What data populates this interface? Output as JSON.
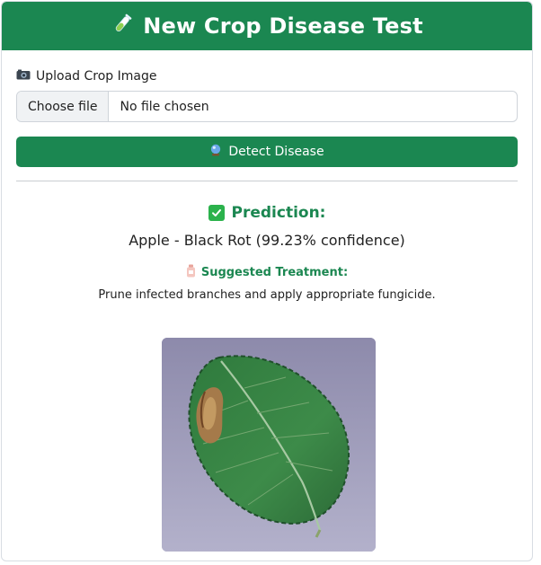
{
  "header": {
    "icon": "test-tube-icon",
    "title": "New Crop Disease Test"
  },
  "upload": {
    "icon": "camera-icon",
    "label": "Upload Crop Image",
    "choose_button": "Choose file",
    "file_status": "No file chosen"
  },
  "detect": {
    "icon": "crystal-ball-icon",
    "label": "Detect Disease"
  },
  "result": {
    "prediction_icon": "check-mark-icon",
    "prediction_heading": "Prediction:",
    "prediction_text": "Apple - Black Rot (99.23% confidence)",
    "treatment_icon": "medicine-bottle-icon",
    "treatment_heading": "Suggested Treatment:",
    "treatment_text": "Prune infected branches and apply appropriate fungicide."
  },
  "colors": {
    "brand_green": "#1b8751",
    "check_green": "#2bb24c"
  }
}
